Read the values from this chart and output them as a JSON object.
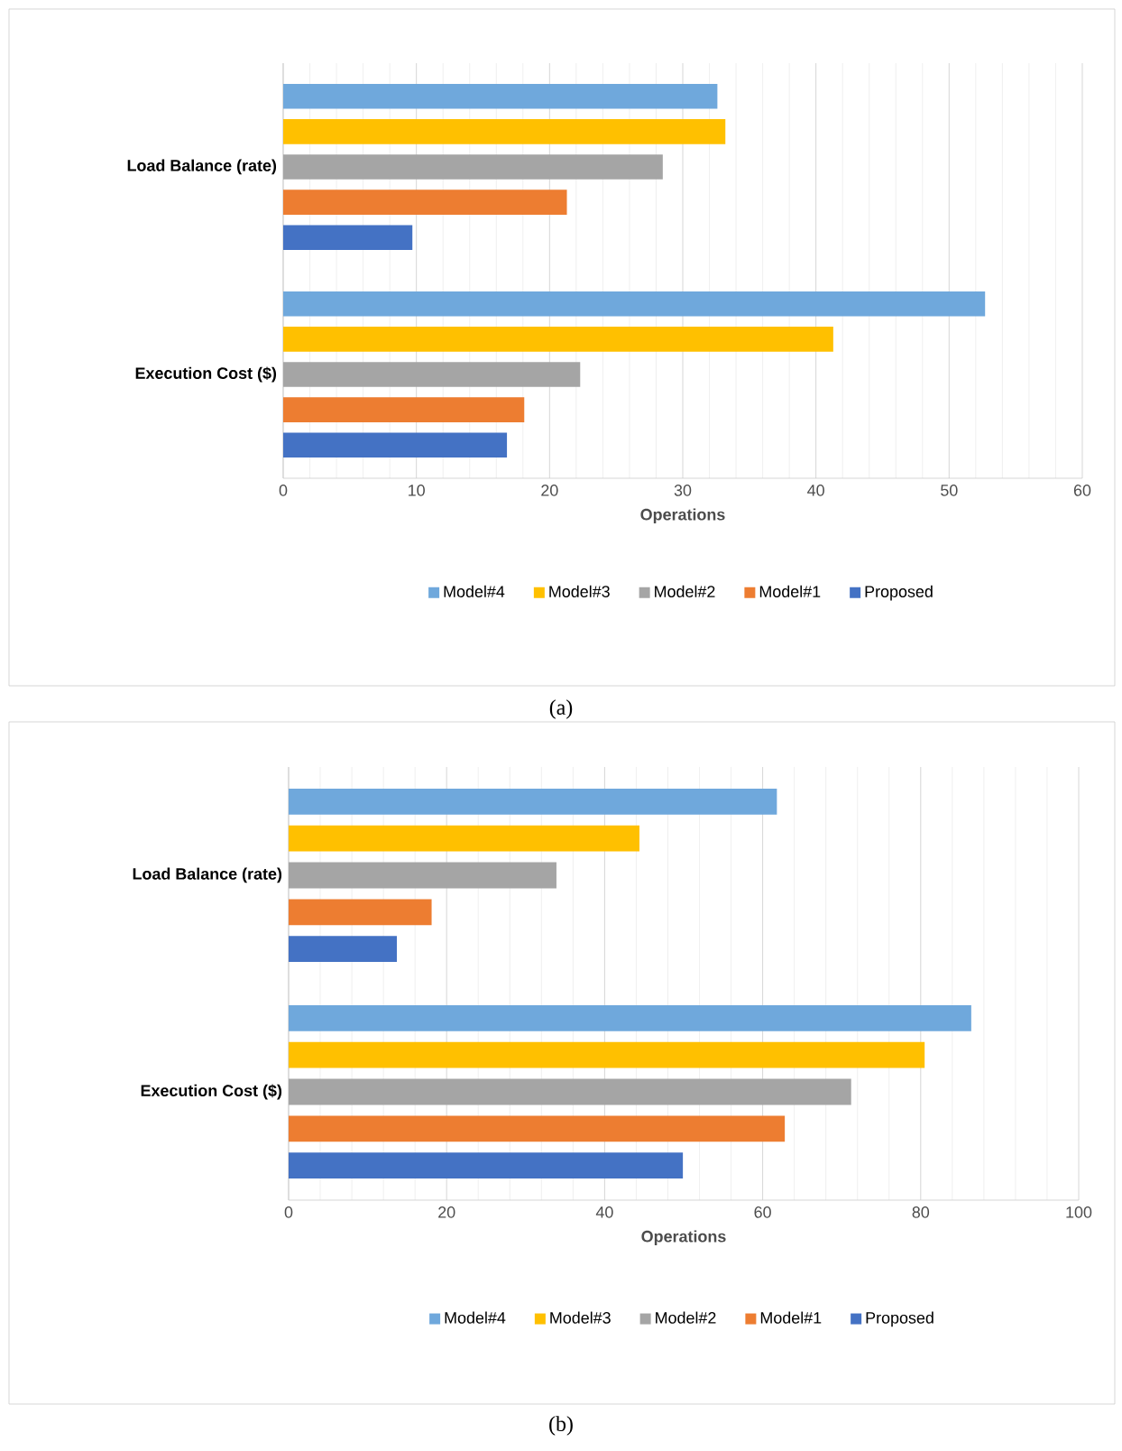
{
  "chart_data": [
    {
      "type": "bar",
      "orientation": "horizontal",
      "categories": [
        "Load Balance (rate)",
        "Execution Cost ($)"
      ],
      "series": [
        {
          "name": "Model#4",
          "color": "#6fa8dc",
          "values": [
            32.6,
            52.7
          ]
        },
        {
          "name": "Model#3",
          "color": "#ffc000",
          "values": [
            33.2,
            41.3
          ]
        },
        {
          "name": "Model#2",
          "color": "#a5a5a5",
          "values": [
            28.5,
            22.3
          ]
        },
        {
          "name": "Model#1",
          "color": "#ed7d31",
          "values": [
            21.3,
            18.1
          ]
        },
        {
          "name": "Proposed",
          "color": "#4472c4",
          "values": [
            9.7,
            16.8
          ]
        }
      ],
      "xlim": [
        0,
        60
      ],
      "xticks": [
        0,
        10,
        20,
        30,
        40,
        50,
        60
      ],
      "xlabel": "Operations",
      "grid": "x",
      "legend": "bottom",
      "annotations": [
        "(a)"
      ]
    },
    {
      "type": "bar",
      "orientation": "horizontal",
      "categories": [
        "Load Balance (rate)",
        "Execution Cost ($)"
      ],
      "series": [
        {
          "name": "Model#4",
          "color": "#6fa8dc",
          "values": [
            61.8,
            86.4
          ]
        },
        {
          "name": "Model#3",
          "color": "#ffc000",
          "values": [
            44.4,
            80.5
          ]
        },
        {
          "name": "Model#2",
          "color": "#a5a5a5",
          "values": [
            33.9,
            71.2
          ]
        },
        {
          "name": "Model#1",
          "color": "#ed7d31",
          "values": [
            18.1,
            62.8
          ]
        },
        {
          "name": "Proposed",
          "color": "#4472c4",
          "values": [
            13.7,
            49.9
          ]
        }
      ],
      "xlim": [
        0,
        100
      ],
      "xticks": [
        0,
        20,
        40,
        60,
        80,
        100
      ],
      "xlabel": "Operations",
      "grid": "x",
      "legend": "bottom",
      "annotations": [
        "(b)"
      ]
    }
  ]
}
